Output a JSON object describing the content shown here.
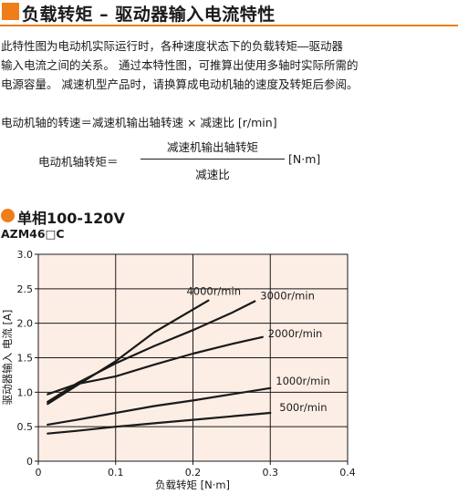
{
  "header": {
    "title": "负载转矩 – 驱动器输入电流特性"
  },
  "description": {
    "lines": [
      "此特性图为电动机实际运行时，各种速度状态下的负载转矩―驱动器",
      "输入电流之间的关系。 通过本特性图，可推算出使用多轴时实际所需的",
      "电源容量。 减速机型产品时，请换算成电动机轴的速度及转矩后参阅。"
    ]
  },
  "formula": {
    "line1": "电动机轴的转速＝减速机输出轴转速 × 减速比 [r/min]",
    "lhs": "电动机轴转矩＝",
    "numerator": "减速机输出轴转矩",
    "denominator": "减速比",
    "unit": "[N·m]"
  },
  "section": {
    "title": "单相100-120V",
    "model": "AZM46□C"
  },
  "colors": {
    "accent": "#ef7d1a",
    "plot_bg": "#fdeee5",
    "line": "#1a1a1a"
  },
  "chart_data": {
    "type": "line",
    "xlabel": "负载转矩 [N·m]",
    "ylabel": "驱动器输入 电流 [A]",
    "xlim": [
      0,
      0.4
    ],
    "ylim": [
      0,
      3.0
    ],
    "x_ticks": [
      "0",
      "0.1",
      "0.2",
      "0.3",
      "0.4"
    ],
    "y_ticks": [
      "0",
      "0.5",
      "1.0",
      "1.5",
      "2.0",
      "2.5",
      "3.0"
    ],
    "grid": true,
    "series": [
      {
        "name": "4000r/min",
        "x": [
          0.012,
          0.05,
          0.1,
          0.15,
          0.22
        ],
        "y": [
          0.83,
          1.1,
          1.45,
          1.87,
          2.33
        ]
      },
      {
        "name": "3000r/min",
        "x": [
          0.012,
          0.05,
          0.1,
          0.15,
          0.2,
          0.25,
          0.28
        ],
        "y": [
          0.86,
          1.13,
          1.42,
          1.67,
          1.9,
          2.15,
          2.32
        ]
      },
      {
        "name": "2000r/min",
        "x": [
          0.012,
          0.05,
          0.1,
          0.15,
          0.2,
          0.25,
          0.29
        ],
        "y": [
          0.97,
          1.12,
          1.23,
          1.4,
          1.56,
          1.7,
          1.8
        ]
      },
      {
        "name": "1000r/min",
        "x": [
          0.012,
          0.05,
          0.1,
          0.15,
          0.2,
          0.25,
          0.3
        ],
        "y": [
          0.53,
          0.6,
          0.7,
          0.8,
          0.88,
          0.97,
          1.06
        ]
      },
      {
        "name": "500r/min",
        "x": [
          0.012,
          0.05,
          0.1,
          0.15,
          0.2,
          0.25,
          0.3
        ],
        "y": [
          0.4,
          0.44,
          0.5,
          0.55,
          0.6,
          0.65,
          0.7
        ]
      }
    ]
  }
}
